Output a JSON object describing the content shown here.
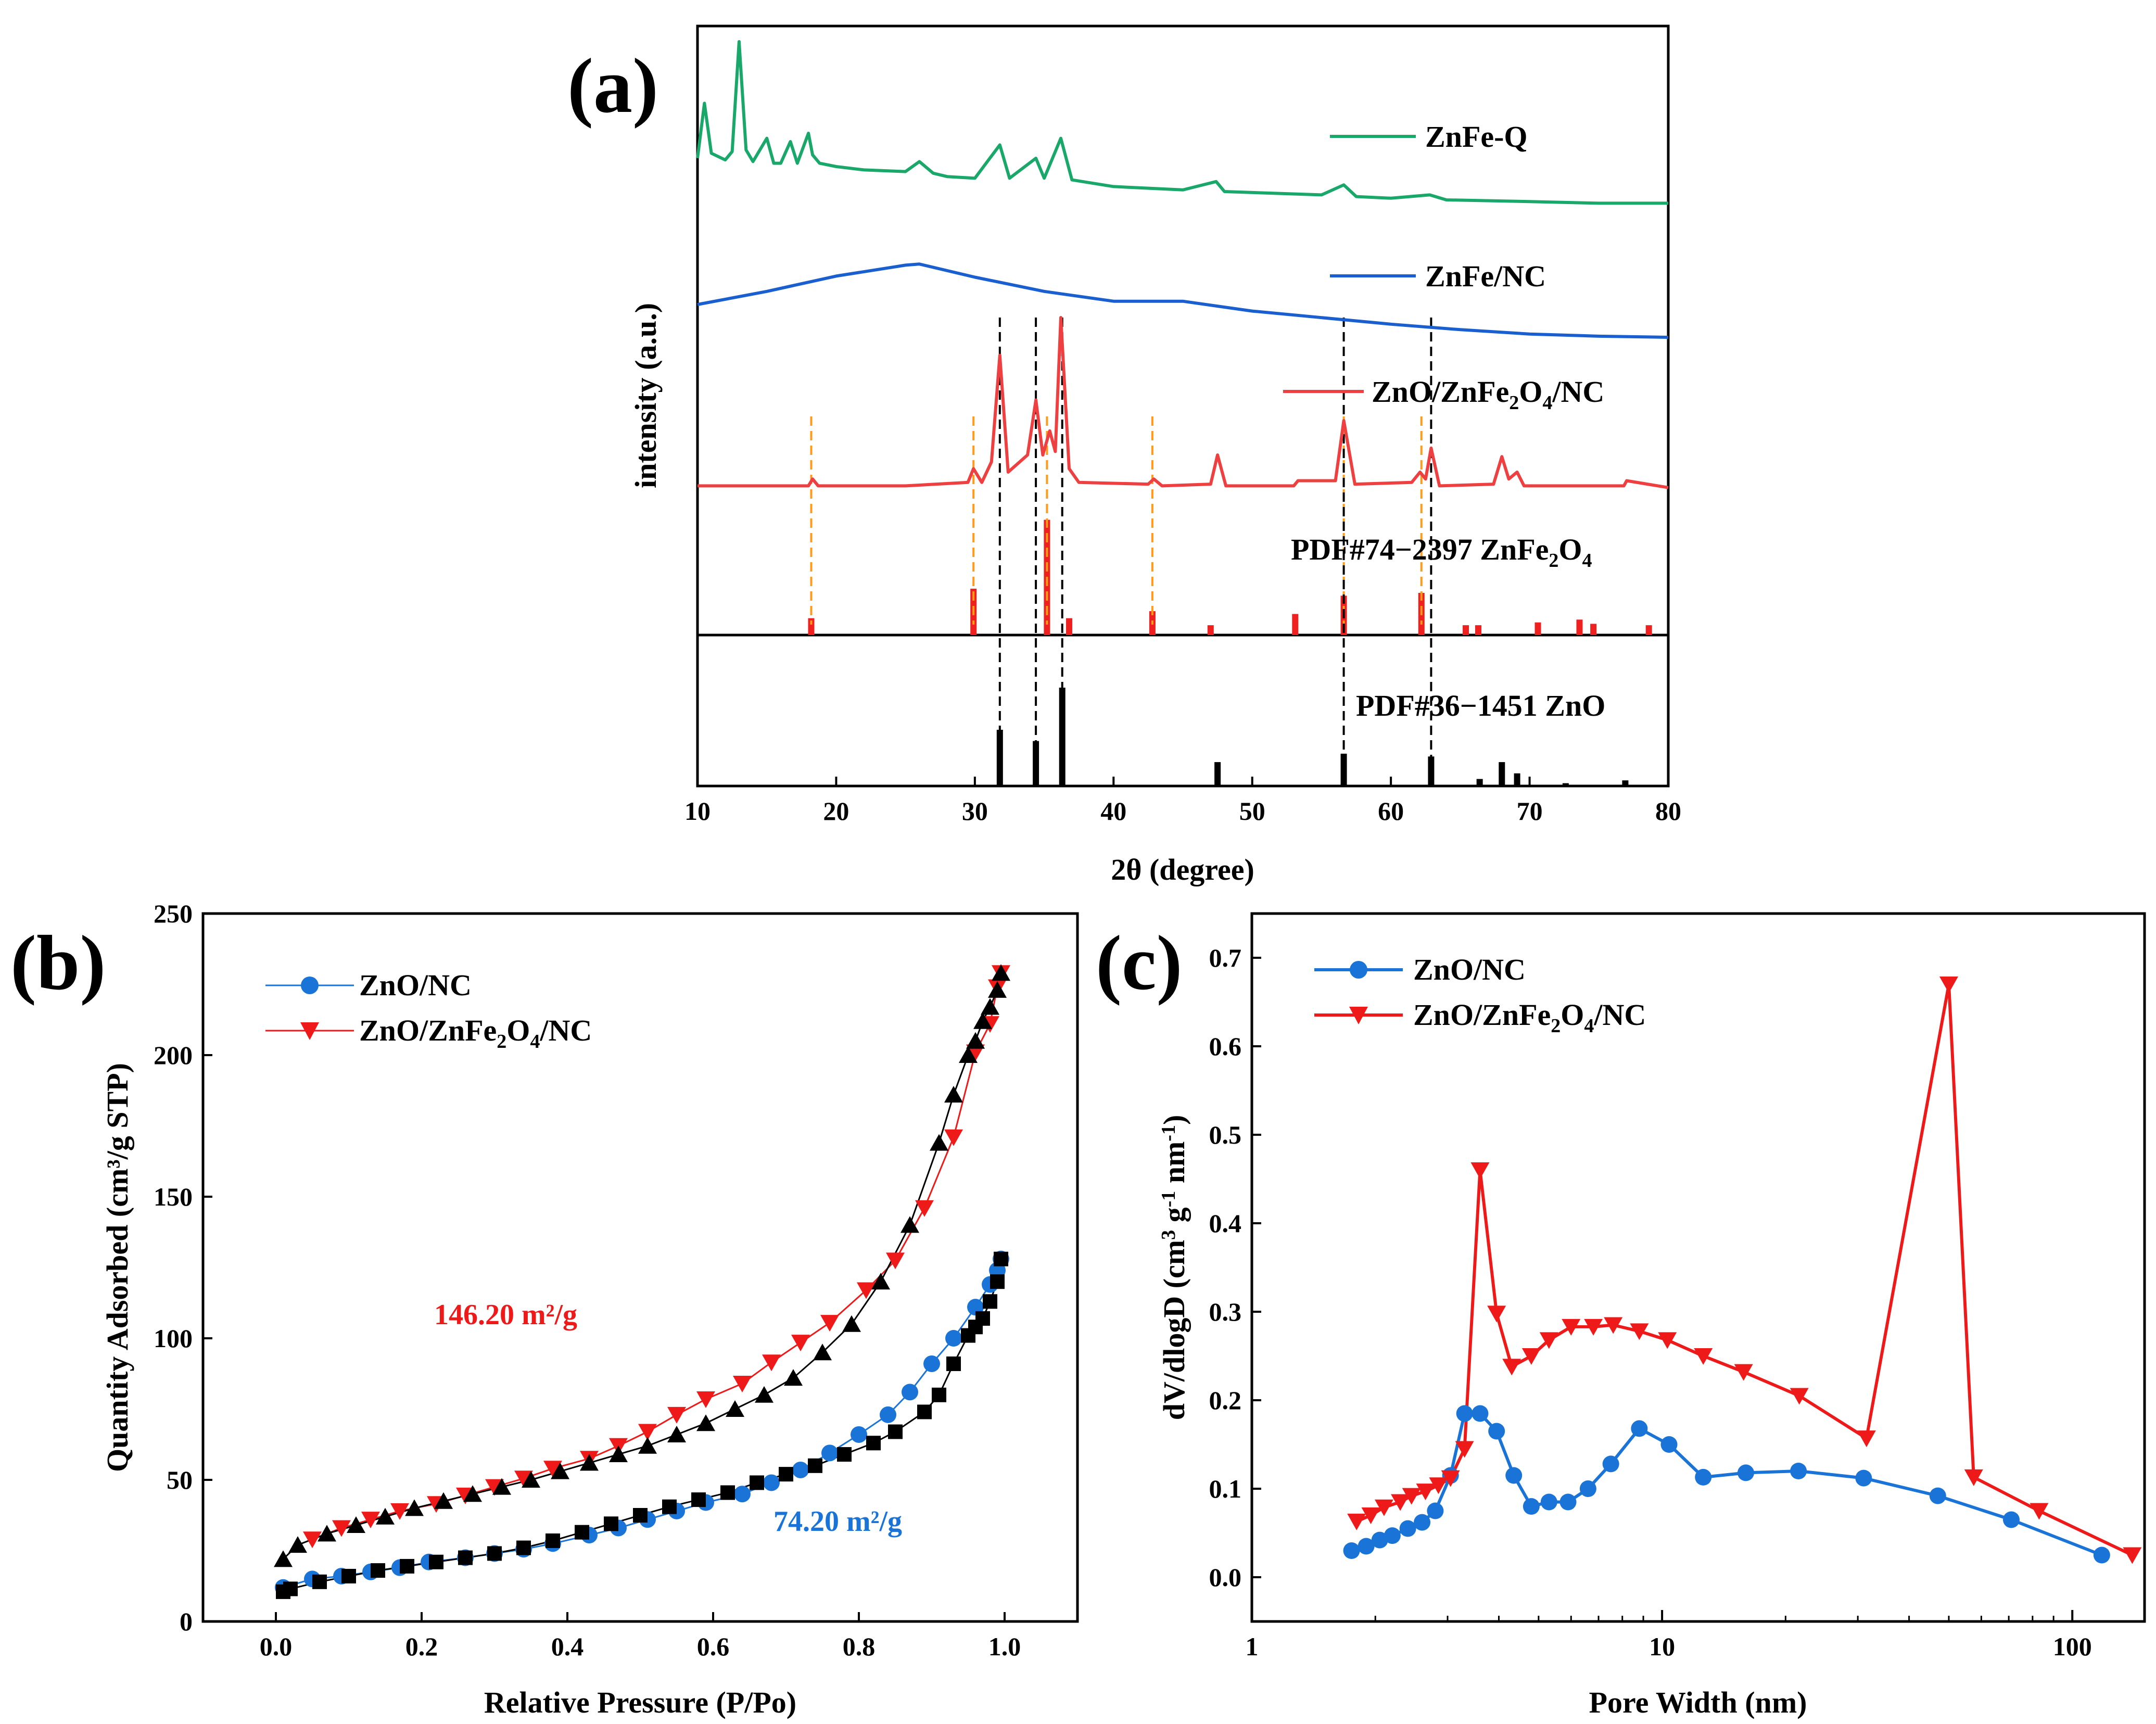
{
  "chart_data": [
    {
      "id": "a",
      "type": "line",
      "panel_label": "(a)",
      "xlabel": "2θ (degree)",
      "ylabel": "intensity (a.u.)",
      "xlim": [
        10,
        80
      ],
      "xticks": [
        10,
        20,
        30,
        40,
        50,
        60,
        70,
        80
      ],
      "series": [
        {
          "name": "ZnFe-Q",
          "color": "#1aa86a",
          "x": [
            10,
            10.5,
            11,
            12,
            12.5,
            13,
            13.5,
            14,
            15,
            15.5,
            16,
            16.7,
            17.2,
            18,
            18.3,
            18.8,
            20,
            22,
            25,
            26,
            27,
            28,
            30,
            31.8,
            32.5,
            34.4,
            35,
            36.2,
            37,
            40,
            45,
            47.4,
            48,
            55,
            56.6,
            57.5,
            60,
            62.8,
            64,
            70,
            75,
            80
          ],
          "y": [
            0.3,
            0.63,
            0.33,
            0.29,
            0.34,
            1.0,
            0.35,
            0.28,
            0.42,
            0.27,
            0.27,
            0.4,
            0.27,
            0.45,
            0.32,
            0.27,
            0.25,
            0.23,
            0.22,
            0.28,
            0.21,
            0.19,
            0.18,
            0.38,
            0.18,
            0.3,
            0.18,
            0.42,
            0.17,
            0.13,
            0.11,
            0.16,
            0.1,
            0.08,
            0.14,
            0.07,
            0.06,
            0.08,
            0.05,
            0.04,
            0.03,
            0.03
          ]
        },
        {
          "name": "ZnFe/NC",
          "color": "#1a5fd0",
          "x": [
            10,
            15,
            20,
            25,
            26,
            30,
            35,
            40,
            45,
            50,
            55,
            60,
            65,
            70,
            75,
            80
          ],
          "y": [
            0.3,
            0.42,
            0.56,
            0.66,
            0.67,
            0.55,
            0.42,
            0.33,
            0.33,
            0.24,
            0.18,
            0.12,
            0.07,
            0.03,
            0.01,
            0.0
          ]
        },
        {
          "name": "ZnO/ZnFe2O4/NC",
          "color": "#ee4040",
          "x": [
            10,
            18,
            18.3,
            18.7,
            25,
            29.5,
            29.9,
            30.5,
            31.2,
            31.8,
            32.4,
            33.8,
            34.4,
            34.9,
            35.4,
            35.8,
            36.2,
            36.8,
            37.5,
            42.5,
            42.9,
            43.5,
            47.0,
            47.5,
            48.1,
            53.0,
            53.3,
            56.0,
            56.6,
            57.4,
            61.5,
            62.1,
            62.5,
            62.9,
            63.5,
            67.4,
            68.0,
            68.5,
            69.1,
            69.6,
            76.8,
            77.0,
            80
          ],
          "y": [
            0.02,
            0.02,
            0.06,
            0.02,
            0.02,
            0.04,
            0.12,
            0.04,
            0.16,
            0.78,
            0.1,
            0.2,
            0.52,
            0.2,
            0.34,
            0.22,
            1.0,
            0.12,
            0.04,
            0.03,
            0.06,
            0.02,
            0.03,
            0.2,
            0.02,
            0.02,
            0.05,
            0.05,
            0.4,
            0.03,
            0.04,
            0.1,
            0.06,
            0.24,
            0.02,
            0.03,
            0.19,
            0.06,
            0.1,
            0.02,
            0.02,
            0.05,
            0.01
          ]
        }
      ],
      "reference_panels": [
        {
          "name": "PDF#74−2397 ZnFe",
          "suffix_sub": "2",
          "suffix_tail": "O",
          "suffix_sub2": "4",
          "color": "#ee2020",
          "peaks_x": [
            18.2,
            29.9,
            35.2,
            36.8,
            42.8,
            47.0,
            53.1,
            56.6,
            62.2,
            65.4,
            66.3,
            70.6,
            73.6,
            74.6,
            78.6
          ],
          "peaks_h": [
            0.12,
            0.33,
            0.82,
            0.12,
            0.17,
            0.07,
            0.15,
            0.28,
            0.3,
            0.07,
            0.07,
            0.09,
            0.11,
            0.08,
            0.07
          ]
        },
        {
          "name": "PDF#36−1451 ZnO",
          "color": "#000000",
          "peaks_x": [
            31.8,
            34.4,
            36.3,
            47.5,
            56.6,
            62.9,
            66.4,
            68.0,
            69.1,
            72.6,
            76.9
          ],
          "peaks_h": [
            0.4,
            0.32,
            0.7,
            0.17,
            0.23,
            0.21,
            0.05,
            0.17,
            0.09,
            0.02,
            0.04
          ]
        }
      ],
      "orange_dashed_x": [
        18.2,
        29.9,
        35.2,
        42.8,
        56.6,
        62.2
      ],
      "black_dashed_x": [
        31.8,
        34.4,
        36.3,
        56.6,
        62.9
      ],
      "legend_placement": "right, next to each curve"
    },
    {
      "id": "b",
      "type": "line",
      "panel_label": "(b)",
      "xlabel": "Relative Pressure (P/Po)",
      "ylabel": "Quantity Adsorbed (cm³/g STP)",
      "xlim": [
        -0.1,
        1.1
      ],
      "ylim": [
        0,
        250
      ],
      "xticks": [
        "0.0",
        "0.2",
        "0.4",
        "0.6",
        "0.8",
        "1.0"
      ],
      "yticks": [
        0,
        50,
        100,
        150,
        200,
        250
      ],
      "legend": [
        "ZnO/NC",
        "ZnO/ZnFe"
      ],
      "legend_sub": "2",
      "legend_tail": "O",
      "legend_sub2": "4",
      "legend_tail2": "/NC",
      "annotations": [
        {
          "text": "146.20 m²/g",
          "color": "#ee1a1a",
          "x": 0.36,
          "y": 105
        },
        {
          "text": "74.20 m²/g",
          "color": "#1a74d8",
          "x": 0.79,
          "y": 32
        }
      ],
      "series": [
        {
          "name": "ZnO/NC adsorption",
          "color": "#1a74d8",
          "marker": "circle",
          "x": [
            0.01,
            0.05,
            0.09,
            0.13,
            0.17,
            0.21,
            0.26,
            0.3,
            0.34,
            0.38,
            0.43,
            0.47,
            0.51,
            0.55,
            0.59,
            0.64,
            0.68,
            0.72,
            0.76,
            0.8,
            0.84,
            0.87,
            0.9,
            0.93,
            0.96,
            0.98,
            0.99,
            0.995
          ],
          "y": [
            12,
            15,
            16,
            17.5,
            19,
            21,
            22.5,
            24,
            25.5,
            27.5,
            30.5,
            33,
            36,
            39,
            42,
            45,
            49,
            53.5,
            59.5,
            66,
            73,
            81,
            91,
            100,
            111,
            119,
            124,
            128
          ]
        },
        {
          "name": "ZnO/NC desorption",
          "color": "#000000",
          "marker": "square",
          "x": [
            0.995,
            0.99,
            0.98,
            0.97,
            0.96,
            0.95,
            0.93,
            0.91,
            0.89,
            0.85,
            0.82,
            0.78,
            0.74,
            0.7,
            0.66,
            0.62,
            0.58,
            0.54,
            0.5,
            0.46,
            0.42,
            0.38,
            0.34,
            0.3,
            0.26,
            0.22,
            0.18,
            0.14,
            0.1,
            0.06,
            0.02,
            0.01
          ],
          "y": [
            128,
            120,
            113,
            107,
            104,
            101,
            91,
            80,
            74,
            67,
            63,
            59,
            55,
            52,
            49,
            45.5,
            43,
            40.5,
            37.5,
            34.5,
            31.5,
            28.5,
            26,
            24,
            22.5,
            21,
            19.5,
            18,
            16,
            14,
            11.5,
            10.5
          ]
        },
        {
          "name": "ZnO/ZnFe2O4/NC adsorption",
          "color": "#ee1a1a",
          "marker": "triangle-down",
          "x": [
            0.05,
            0.09,
            0.13,
            0.17,
            0.22,
            0.26,
            0.3,
            0.34,
            0.38,
            0.43,
            0.47,
            0.51,
            0.55,
            0.59,
            0.64,
            0.68,
            0.72,
            0.76,
            0.81,
            0.85,
            0.89,
            0.93,
            0.96,
            0.98,
            0.99,
            0.995
          ],
          "y": [
            29,
            33,
            36,
            39,
            41.5,
            44.5,
            47.5,
            50.5,
            54,
            57.5,
            62,
            67,
            73,
            78.5,
            84,
            91.5,
            98.5,
            105.5,
            117,
            127.5,
            146,
            171,
            201,
            211,
            224,
            229
          ]
        },
        {
          "name": "ZnO/ZnFe2O4/NC desorption",
          "color": "#000000",
          "marker": "triangle-up",
          "x": [
            0.995,
            0.99,
            0.98,
            0.97,
            0.96,
            0.95,
            0.93,
            0.91,
            0.87,
            0.83,
            0.79,
            0.75,
            0.71,
            0.67,
            0.63,
            0.59,
            0.55,
            0.51,
            0.47,
            0.43,
            0.39,
            0.35,
            0.31,
            0.27,
            0.23,
            0.19,
            0.15,
            0.11,
            0.07,
            0.03,
            0.01
          ],
          "y": [
            229,
            223,
            217,
            212,
            205,
            200,
            186,
            169,
            140,
            120,
            105,
            95,
            86,
            80,
            75,
            70,
            66,
            62,
            59,
            56,
            53,
            50,
            47.5,
            45,
            42.5,
            40,
            37,
            34,
            31,
            27,
            22
          ]
        }
      ]
    },
    {
      "id": "c",
      "type": "line",
      "panel_label": "(c)",
      "xlabel": "Pore Width (nm)",
      "ylabel": "dV/dlogD (cm",
      "ylabel_sup1": "3",
      "ylabel_mid": " g",
      "ylabel_sup2": "-1",
      "ylabel_tail": " nm",
      "ylabel_sup3": "-1",
      "ylabel_end": ")",
      "xscale": "log",
      "xlim": [
        1,
        150
      ],
      "ylim": [
        -0.05,
        0.75
      ],
      "xticks": [
        "1",
        "10",
        "100"
      ],
      "yticks": [
        "0.0",
        "0.1",
        "0.2",
        "0.3",
        "0.4",
        "0.5",
        "0.6",
        "0.7"
      ],
      "legend": [
        "ZnO/NC",
        "ZnO/ZnFe"
      ],
      "legend_sub": "2",
      "legend_tail": "O",
      "legend_sub2": "4",
      "legend_tail2": "/NC",
      "series": [
        {
          "name": "ZnO/NC",
          "color": "#1a74d8",
          "marker": "circle",
          "x": [
            1.75,
            1.9,
            2.05,
            2.2,
            2.4,
            2.6,
            2.8,
            3.05,
            3.3,
            3.6,
            3.95,
            4.35,
            4.8,
            5.3,
            5.9,
            6.6,
            7.5,
            8.8,
            10.4,
            12.6,
            16.0,
            21.5,
            31.0,
            47.0,
            71.0,
            118.0
          ],
          "y": [
            0.03,
            0.035,
            0.042,
            0.047,
            0.055,
            0.062,
            0.075,
            0.115,
            0.185,
            0.185,
            0.165,
            0.115,
            0.08,
            0.085,
            0.085,
            0.1,
            0.128,
            0.168,
            0.15,
            0.113,
            0.118,
            0.12,
            0.112,
            0.092,
            0.065,
            0.025
          ]
        },
        {
          "name": "ZnO/ZnFe2O4/NC",
          "color": "#ee1a1a",
          "marker": "triangle-down",
          "x": [
            1.8,
            1.95,
            2.1,
            2.3,
            2.45,
            2.65,
            2.85,
            3.05,
            3.3,
            3.6,
            3.95,
            4.3,
            4.8,
            5.3,
            6.0,
            6.8,
            7.6,
            8.8,
            10.3,
            12.6,
            15.8,
            21.6,
            31.5,
            50.0,
            57.5,
            83.0,
            140.0
          ],
          "y": [
            0.063,
            0.07,
            0.079,
            0.085,
            0.092,
            0.097,
            0.104,
            0.112,
            0.145,
            0.46,
            0.298,
            0.238,
            0.25,
            0.268,
            0.283,
            0.283,
            0.285,
            0.278,
            0.268,
            0.25,
            0.232,
            0.205,
            0.157,
            0.67,
            0.113,
            0.075,
            0.025
          ]
        }
      ]
    }
  ]
}
